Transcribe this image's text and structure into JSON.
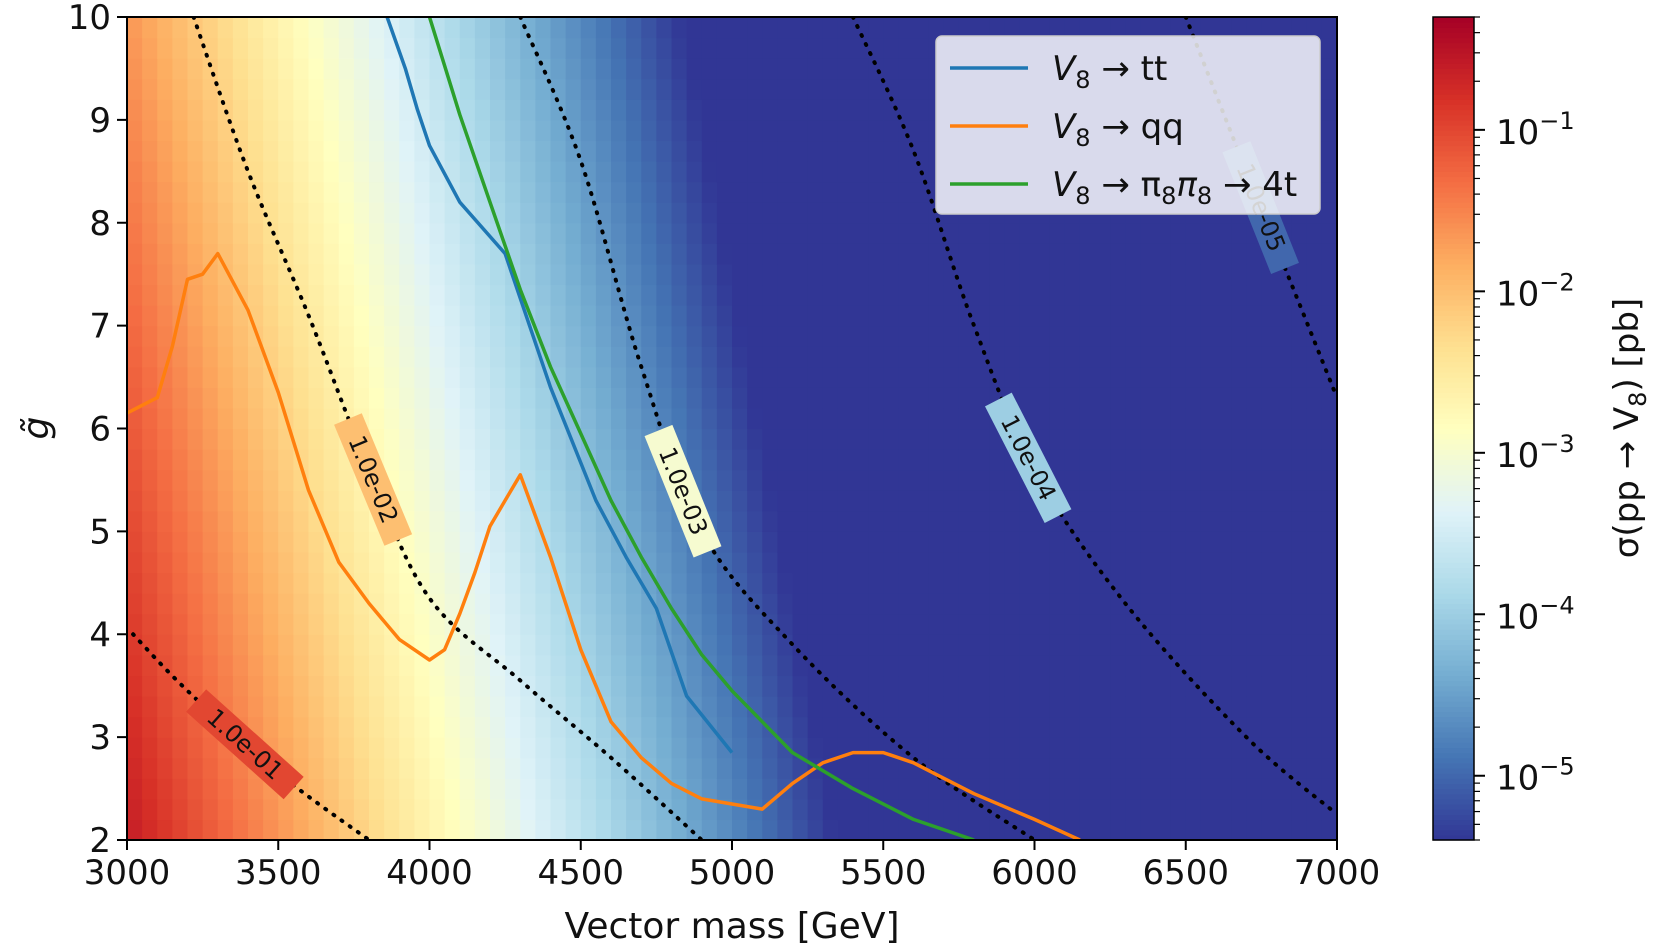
{
  "chart_data": {
    "type": "heatmap",
    "xlabel": "Vector mass [GeV]",
    "ylabel": "g̃",
    "xlim": [
      3000,
      7000
    ],
    "ylim": [
      2,
      10
    ],
    "x_ticks": [
      3000,
      3500,
      4000,
      4500,
      5000,
      5500,
      6000,
      6500,
      7000
    ],
    "y_ticks": [
      2,
      3,
      4,
      5,
      6,
      7,
      8,
      9,
      10
    ],
    "x_tick_labels": [
      "3000",
      "3500",
      "4000",
      "4500",
      "5000",
      "5500",
      "6000",
      "6500",
      "7000"
    ],
    "y_tick_labels": [
      "2",
      "3",
      "4",
      "5",
      "6",
      "7",
      "8",
      "9",
      "10"
    ],
    "colorbar": {
      "label": "σ(pp → V8) [pb]",
      "label_main": "σ(pp → V",
      "label_sub": "8",
      "label_end": ") [pb]",
      "scale": "log",
      "range": [
        4e-06,
        0.5
      ],
      "colormap": "RdYlBu_r",
      "ticks": [
        {
          "value": 0.1,
          "base": "10",
          "exp": "−1"
        },
        {
          "value": 0.01,
          "base": "10",
          "exp": "−2"
        },
        {
          "value": 0.001,
          "base": "10",
          "exp": "−3"
        },
        {
          "value": 0.0001,
          "base": "10",
          "exp": "−4"
        },
        {
          "value": 1e-05,
          "base": "10",
          "exp": "−5"
        }
      ]
    },
    "contours": [
      {
        "label": "1.0e-01",
        "points": [
          [
            3020,
            4.0
          ],
          [
            3200,
            3.45
          ],
          [
            3500,
            2.65
          ],
          [
            3800,
            2.0
          ]
        ]
      },
      {
        "label": "1.0e-02",
        "points": [
          [
            3220,
            10.0
          ],
          [
            3400,
            8.5
          ],
          [
            3600,
            7.1
          ],
          [
            3800,
            5.6
          ],
          [
            4000,
            4.35
          ],
          [
            4300,
            3.55
          ],
          [
            4600,
            2.8
          ],
          [
            4900,
            2.0
          ]
        ]
      },
      {
        "label": "1.0e-03",
        "points": [
          [
            4300,
            10.0
          ],
          [
            4500,
            8.6
          ],
          [
            4700,
            6.6
          ],
          [
            4900,
            5.0
          ],
          [
            5200,
            3.9
          ],
          [
            5600,
            2.8
          ],
          [
            6000,
            2.0
          ]
        ]
      },
      {
        "label": "1.0e-04",
        "points": [
          [
            5400,
            10.0
          ],
          [
            5600,
            8.7
          ],
          [
            5800,
            7.0
          ],
          [
            6000,
            5.6
          ],
          [
            6300,
            4.3
          ],
          [
            6700,
            3.0
          ],
          [
            7000,
            2.25
          ]
        ]
      },
      {
        "label": "1.0e-05",
        "points": [
          [
            6500,
            10.0
          ],
          [
            6700,
            8.5
          ],
          [
            6850,
            7.4
          ],
          [
            7000,
            6.3
          ]
        ]
      }
    ],
    "series": [
      {
        "name": "V8 → tt",
        "label_main": "V",
        "label_sub": "8",
        "label_end": " → tt",
        "color": "#1f77b4",
        "x": [
          3860,
          3920,
          3960,
          4000,
          4100,
          4250,
          4400,
          4550,
          4650,
          4750,
          4850,
          5000
        ],
        "y": [
          10.0,
          9.5,
          9.1,
          8.75,
          8.2,
          7.7,
          6.4,
          5.3,
          4.75,
          4.25,
          3.4,
          2.85
        ]
      },
      {
        "name": "V8 → qq",
        "label_main": "V",
        "label_sub": "8",
        "label_end": " → qq",
        "color": "#ff7f0e",
        "x": [
          3000,
          3100,
          3150,
          3200,
          3250,
          3300,
          3400,
          3500,
          3600,
          3700,
          3800,
          3900,
          4000,
          4050,
          4100,
          4150,
          4200,
          4250,
          4300,
          4400,
          4500,
          4600,
          4700,
          4800,
          4900,
          5000,
          5100,
          5200,
          5300,
          5400,
          5500,
          5600,
          5700,
          5800,
          6000,
          6150
        ],
        "y": [
          6.15,
          6.3,
          6.8,
          7.45,
          7.5,
          7.7,
          7.15,
          6.35,
          5.4,
          4.7,
          4.3,
          3.95,
          3.75,
          3.85,
          4.2,
          4.6,
          5.05,
          5.3,
          5.55,
          4.75,
          3.85,
          3.15,
          2.8,
          2.55,
          2.4,
          2.35,
          2.3,
          2.55,
          2.75,
          2.85,
          2.85,
          2.75,
          2.6,
          2.45,
          2.2,
          2.0
        ]
      },
      {
        "name": "V8 → π8π8 → 4t",
        "label_main": "V",
        "label_sub": "8",
        "label_mid1": " → π",
        "label_sub2": "8",
        "label_mid2": "π",
        "label_sub3": "8",
        "label_end": " → 4t",
        "color": "#2ca02c",
        "x": [
          4000,
          4100,
          4200,
          4300,
          4400,
          4500,
          4600,
          4700,
          4800,
          4900,
          5000,
          5200,
          5400,
          5600,
          5800
        ],
        "y": [
          10.0,
          9.05,
          8.2,
          7.35,
          6.6,
          5.95,
          5.3,
          4.75,
          4.25,
          3.8,
          3.45,
          2.85,
          2.5,
          2.2,
          2.0
        ]
      }
    ],
    "legend": "top-right"
  }
}
